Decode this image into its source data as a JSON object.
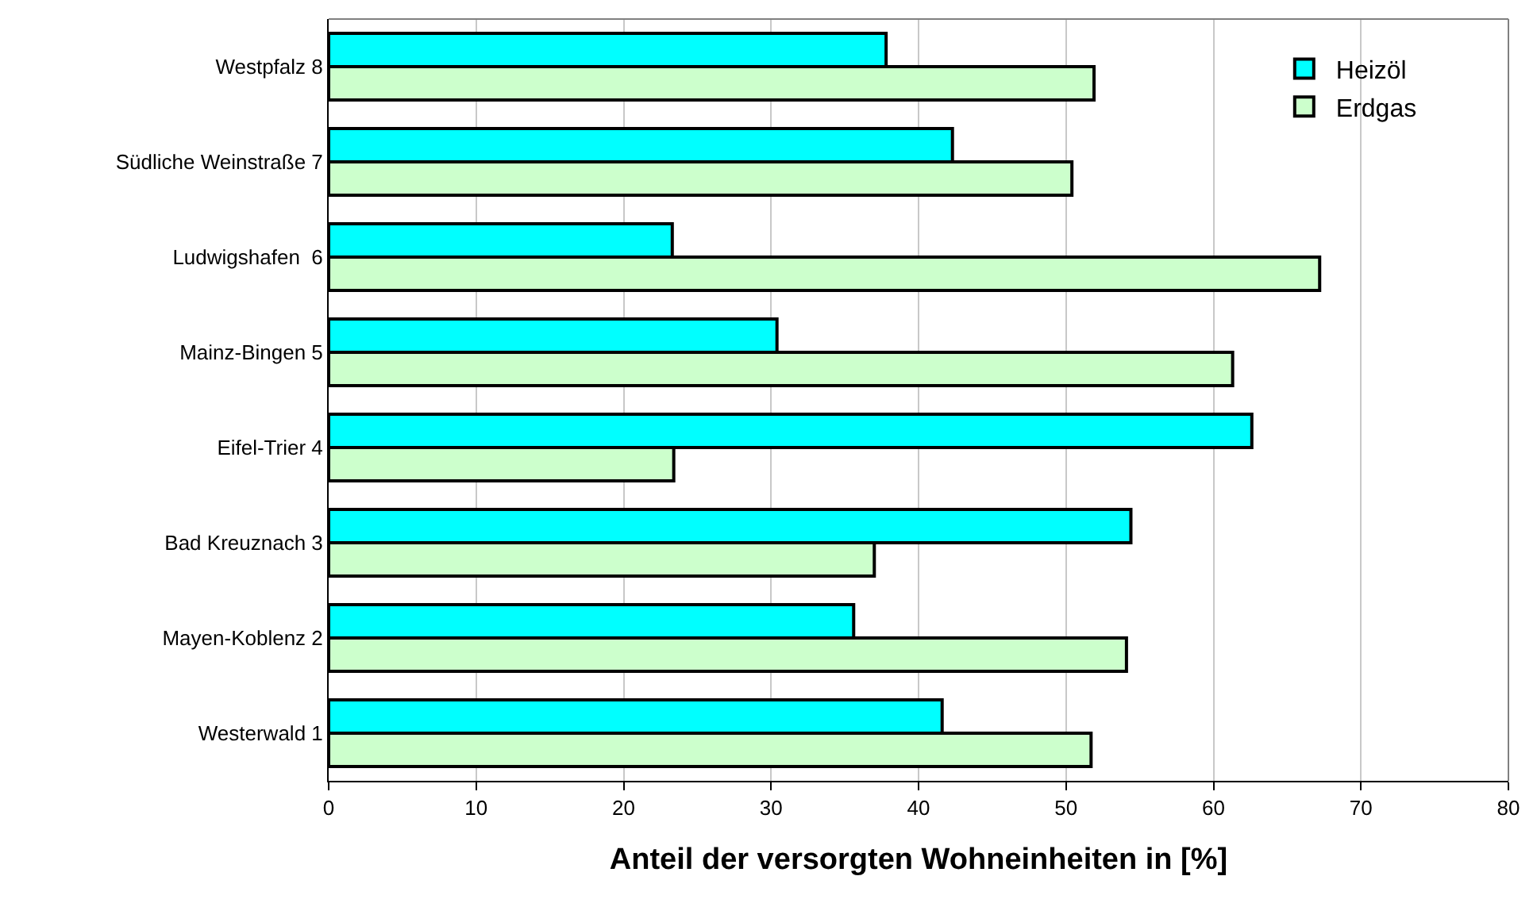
{
  "chart_data": {
    "type": "bar",
    "orientation": "horizontal",
    "xlabel": "Anteil der versorgten Wohneinheiten in [%]",
    "categories": [
      "Westpfalz 8",
      "Südliche Weinstraße 7",
      "Ludwigshafen  6",
      "Mainz-Bingen 5",
      "Eifel-Trier 4",
      "Bad Kreuznach 3",
      "Mayen-Koblenz 2",
      "Westerwald 1"
    ],
    "series": [
      {
        "name": "Heizöl",
        "color": "#00ffff",
        "values": [
          37.8,
          42.3,
          23.3,
          30.4,
          62.6,
          54.4,
          35.6,
          41.6
        ]
      },
      {
        "name": "Erdgas",
        "color": "#ccffcc",
        "values": [
          51.9,
          50.4,
          67.2,
          61.3,
          23.4,
          37.0,
          54.1,
          51.7
        ]
      }
    ],
    "xlim": [
      0,
      80
    ],
    "xticks": [
      0,
      10,
      20,
      30,
      40,
      50,
      60,
      70,
      80
    ],
    "grid": "x",
    "legend": "top right"
  }
}
